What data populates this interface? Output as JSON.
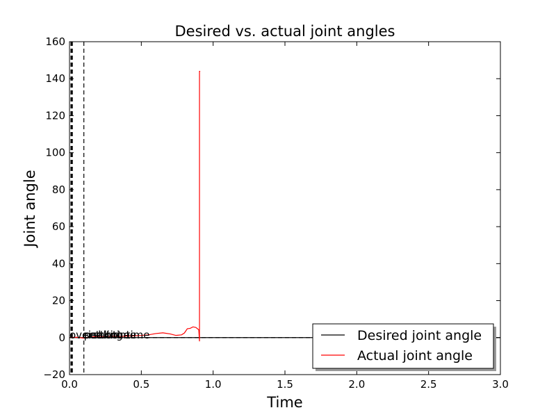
{
  "chart_data": {
    "type": "line",
    "title": "Desired vs. actual joint angles",
    "xlabel": "Time",
    "ylabel": "Joint angle",
    "xlim": [
      0,
      3
    ],
    "ylim": [
      -20,
      160
    ],
    "xticks": [
      0.0,
      0.5,
      1.0,
      1.5,
      2.0,
      2.5,
      3.0
    ],
    "xtick_labels": [
      "0.0",
      "0.5",
      "1.0",
      "1.5",
      "2.0",
      "2.5",
      "3.0"
    ],
    "yticks": [
      -20,
      0,
      20,
      40,
      60,
      80,
      100,
      120,
      140,
      160
    ],
    "ytick_labels": [
      "−20",
      "0",
      "20",
      "40",
      "60",
      "80",
      "100",
      "120",
      "140",
      "160"
    ],
    "grid": false,
    "legend_position": "lower-right",
    "series": [
      {
        "name": "Desired joint angle",
        "color": "#000000",
        "x": [
          0,
          3
        ],
        "y": [
          0,
          0
        ]
      },
      {
        "name": "Actual joint angle",
        "color": "#ff0000",
        "x": [
          0.0,
          0.05,
          0.1,
          0.15,
          0.2,
          0.25,
          0.3,
          0.35,
          0.4,
          0.45,
          0.5,
          0.55,
          0.6,
          0.65,
          0.7,
          0.74,
          0.78,
          0.8,
          0.82,
          0.84,
          0.86,
          0.88,
          0.9,
          0.905,
          0.905,
          0.91
        ],
        "y": [
          0,
          0.2,
          -0.3,
          0.4,
          0.6,
          0.5,
          0.8,
          0.5,
          0.9,
          1.0,
          1.2,
          1.5,
          2.2,
          2.6,
          2.0,
          1.2,
          1.5,
          2.5,
          4.8,
          5.0,
          5.8,
          5.5,
          4.2,
          -2.0,
          144,
          144
        ]
      }
    ],
    "reference_lines": [
      {
        "x": 0.01,
        "style": "dashed"
      },
      {
        "x": 0.015,
        "style": "dashed"
      },
      {
        "x": 0.02,
        "style": "dashed"
      },
      {
        "x": 0.1,
        "style": "dashed"
      },
      {
        "y": 0,
        "style": "dashed"
      }
    ],
    "annotations": [
      {
        "text": "overshoot",
        "x": 0.0,
        "y": 0
      },
      {
        "text": "settling time",
        "x": 0.1,
        "y": 0
      },
      {
        "text": "peak time",
        "x": 0.1,
        "y": 0
      },
      {
        "text": "rise time",
        "x": 0.1,
        "y": 0
      }
    ]
  }
}
